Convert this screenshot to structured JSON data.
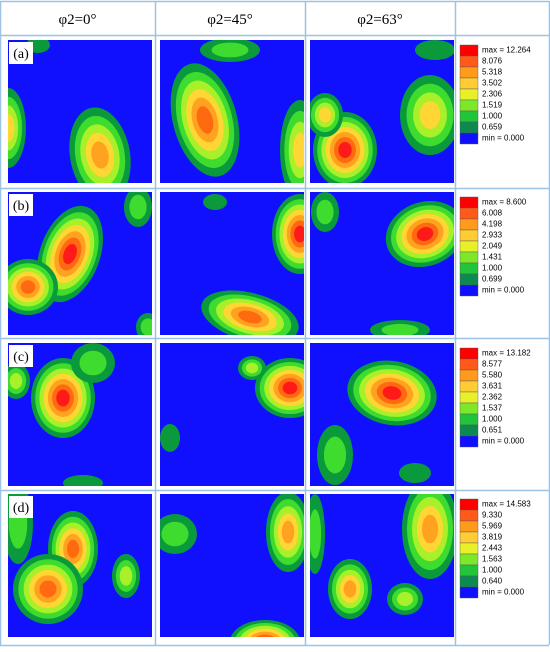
{
  "headers": [
    "φ2=0°",
    "φ2=45°",
    "φ2=63°"
  ],
  "rows": [
    {
      "label": "(a)",
      "legend": [
        "max = 12.264",
        "8.076",
        "5.318",
        "3.502",
        "2.306",
        "1.519",
        "1.000",
        "0.659",
        "min = 0.000"
      ]
    },
    {
      "label": "(b)",
      "legend": [
        "max = 8.600",
        "6.008",
        "4.198",
        "2.933",
        "2.049",
        "1.431",
        "1.000",
        "0.699",
        "min = 0.000"
      ]
    },
    {
      "label": "(c)",
      "legend": [
        "max = 13.182",
        "8.577",
        "5.580",
        "3.631",
        "2.362",
        "1.537",
        "1.000",
        "0.651",
        "min = 0.000"
      ]
    },
    {
      "label": "(d)",
      "legend": [
        "max = 14.583",
        "9.330",
        "5.969",
        "3.819",
        "2.443",
        "1.563",
        "1.000",
        "0.640",
        "min = 0.000"
      ]
    }
  ]
}
